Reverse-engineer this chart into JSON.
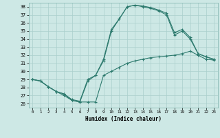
{
  "xlabel": "Humidex (Indice chaleur)",
  "xlim": [
    -0.5,
    23.5
  ],
  "ylim": [
    25.5,
    38.5
  ],
  "yticks": [
    26,
    27,
    28,
    29,
    30,
    31,
    32,
    33,
    34,
    35,
    36,
    37,
    38
  ],
  "xticks": [
    0,
    1,
    2,
    3,
    4,
    5,
    6,
    7,
    8,
    9,
    10,
    11,
    12,
    13,
    14,
    15,
    16,
    17,
    18,
    19,
    20,
    21,
    22,
    23
  ],
  "bg_color": "#cde8e5",
  "line_color": "#2d7a6e",
  "grid_color": "#aacfcc",
  "series_peaked1": [
    29.0,
    28.8,
    28.1,
    27.5,
    27.2,
    26.5,
    26.3,
    29.0,
    29.5,
    31.5,
    35.2,
    36.5,
    38.0,
    38.2,
    38.0,
    37.8,
    37.5,
    37.0,
    34.5,
    35.0,
    34.0,
    32.2,
    31.8,
    31.5
  ],
  "series_peaked2": [
    29.0,
    28.8,
    28.1,
    27.5,
    27.0,
    26.4,
    26.2,
    28.8,
    29.5,
    31.3,
    35.0,
    36.5,
    38.0,
    38.2,
    38.1,
    37.9,
    37.6,
    37.2,
    34.8,
    35.2,
    34.2,
    32.2,
    31.8,
    31.5
  ],
  "series_flat": [
    29.0,
    28.8,
    28.1,
    27.5,
    27.2,
    26.4,
    26.2,
    26.2,
    26.2,
    29.5,
    30.0,
    30.5,
    31.0,
    31.3,
    31.5,
    31.7,
    31.8,
    31.9,
    32.0,
    32.2,
    32.5,
    32.0,
    31.5,
    31.4
  ]
}
